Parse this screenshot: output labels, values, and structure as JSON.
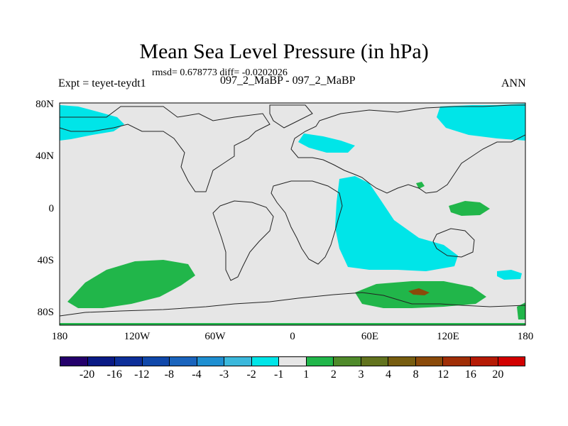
{
  "title": "Mean Sea Level Pressure (in hPa)",
  "stats": "rmsd= 0.678773 diff= -0.0202026",
  "expt": "Expt = teyet-teydt1",
  "cases": "097_2_MaBP - 097_2_MaBP",
  "season": "ANN",
  "lat_labels": [
    "80N",
    "40N",
    "0",
    "40S",
    "80S"
  ],
  "lon_labels": [
    "180",
    "120W",
    "60W",
    "0",
    "60E",
    "120E",
    "180"
  ],
  "colorbar": {
    "colors": [
      "#24006b",
      "#0a1a85",
      "#0d2f99",
      "#1048aa",
      "#1a64bd",
      "#1f8fd1",
      "#3bb8dc",
      "#00e5e8",
      "#e6e6e6",
      "#21b64a",
      "#4f8a2a",
      "#62731e",
      "#775d10",
      "#8a4a0a",
      "#a02e06",
      "#b51a04",
      "#d20000"
    ],
    "labels": [
      "-20",
      "-16",
      "-12",
      "-8",
      "-4",
      "-3",
      "-2",
      "-1",
      "1",
      "2",
      "3",
      "4",
      "8",
      "12",
      "16",
      "20"
    ]
  },
  "colors": {
    "ocean": "#e6e6e6",
    "negative": "#00e5e8",
    "positive": "#21b64a",
    "dark_positive": "#8a4a0a"
  }
}
